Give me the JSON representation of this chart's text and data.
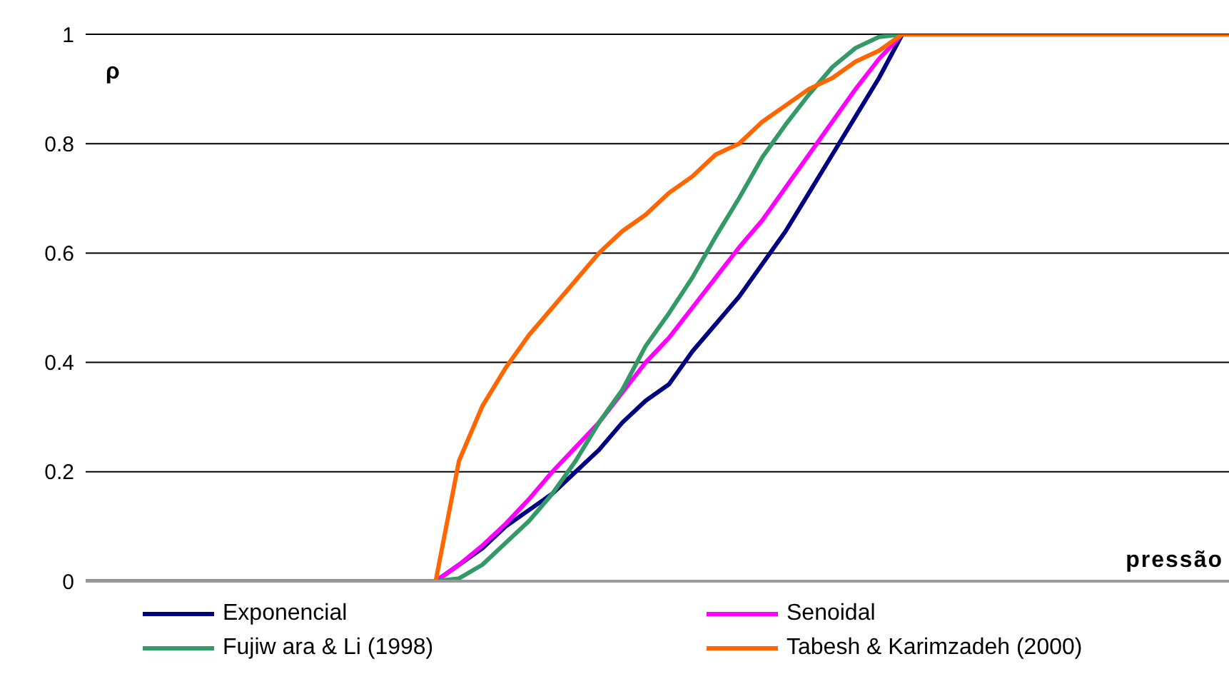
{
  "chart_data": {
    "type": "line",
    "xlabel": "pressão",
    "ylabel": "ρ",
    "categories": [
      null,
      null,
      null,
      null,
      null,
      null,
      null,
      null,
      null,
      null,
      null,
      null,
      null,
      null,
      null,
      null,
      null,
      null,
      null,
      null,
      null,
      null,
      null,
      null,
      null,
      null,
      null,
      null,
      null,
      null,
      null,
      null,
      null,
      null,
      null,
      null,
      null,
      null,
      null,
      null,
      null,
      null,
      null,
      null,
      null,
      null,
      null,
      null,
      null,
      null
    ],
    "series": [
      {
        "name": "Exponencial",
        "color": "#000080",
        "values": [
          null,
          null,
          null,
          null,
          null,
          null,
          null,
          null,
          null,
          null,
          null,
          null,
          null,
          null,
          null,
          0,
          0.03,
          0.06,
          0.1,
          0.13,
          0.16,
          0.2,
          0.24,
          0.29,
          0.33,
          0.36,
          0.42,
          0.47,
          0.52,
          0.58,
          0.64,
          0.71,
          0.78,
          0.85,
          0.92,
          1,
          null,
          null,
          null,
          null,
          null,
          null,
          null,
          null,
          null,
          null,
          null,
          null,
          null,
          null
        ]
      },
      {
        "name": "Senoidal",
        "color": "#ff00ff",
        "values": [
          null,
          null,
          null,
          null,
          null,
          null,
          null,
          null,
          null,
          null,
          null,
          null,
          null,
          null,
          null,
          0,
          0.03,
          0.065,
          0.105,
          0.15,
          0.2,
          0.245,
          0.29,
          0.345,
          0.4,
          0.445,
          0.5,
          0.555,
          0.61,
          0.66,
          0.72,
          0.78,
          0.84,
          0.9,
          0.955,
          1,
          null,
          null,
          null,
          null,
          null,
          null,
          null,
          null,
          null,
          null,
          null,
          null,
          null,
          null
        ]
      },
      {
        "name": "Fujiw ara & Li (1998)",
        "color": "#339966",
        "values": [
          null,
          null,
          null,
          null,
          null,
          null,
          null,
          null,
          null,
          null,
          null,
          null,
          null,
          null,
          null,
          0,
          0.005,
          0.03,
          0.07,
          0.11,
          0.16,
          0.22,
          0.29,
          0.35,
          0.43,
          0.49,
          0.555,
          0.63,
          0.7,
          0.775,
          0.835,
          0.89,
          0.94,
          0.975,
          0.995,
          1,
          null,
          null,
          null,
          null,
          null,
          null,
          null,
          null,
          null,
          null,
          null,
          null,
          null,
          null
        ]
      },
      {
        "name": "Tabesh & Karimzadeh (2000)",
        "color": "#ff6600",
        "values": [
          0,
          0,
          0,
          0,
          0,
          0,
          0,
          0,
          0,
          0,
          0,
          0,
          0,
          0,
          0,
          0,
          0.22,
          0.32,
          0.39,
          0.45,
          0.5,
          0.55,
          0.6,
          0.64,
          0.67,
          0.71,
          0.74,
          0.78,
          0.8,
          0.84,
          0.87,
          0.9,
          0.92,
          0.95,
          0.97,
          1,
          1,
          1,
          1,
          1,
          1,
          1,
          1,
          1,
          1,
          1,
          1,
          1,
          1,
          1
        ]
      }
    ],
    "ylim": [
      0,
      1
    ],
    "yticks": [
      0,
      0.2,
      0.4,
      0.6,
      0.8,
      1
    ],
    "grid": "y",
    "legend": "bottom",
    "marker": "none",
    "line_style": "solid"
  }
}
